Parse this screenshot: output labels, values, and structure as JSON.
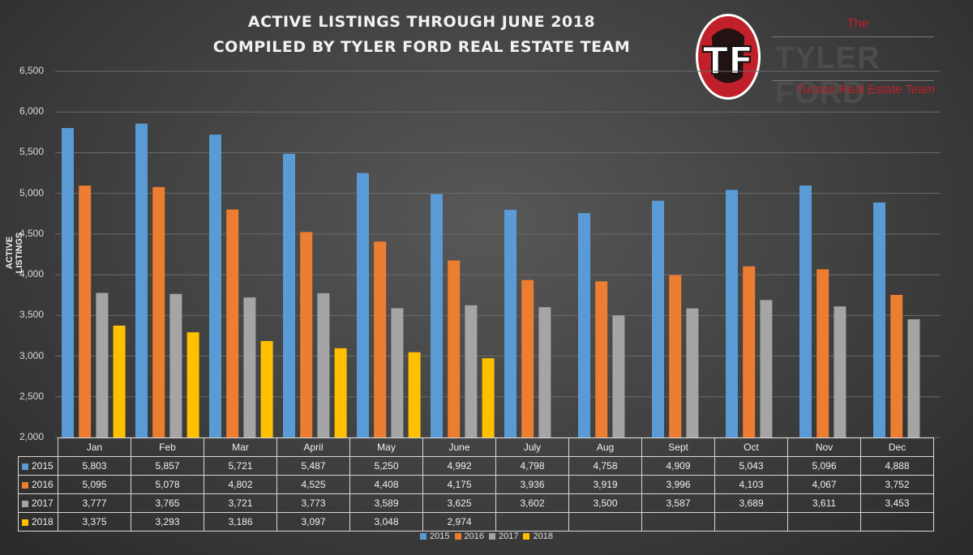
{
  "title_line1": "ACTIVE LISTINGS THROUGH JUNE 2018",
  "title_line2": "COMPILED BY TYLER FORD REAL ESTATE TEAM",
  "logo": {
    "monogram": "TF",
    "the": "The",
    "name": "TYLER FORD",
    "subtitle": "Tucson Real Estate Team",
    "brand_red": "#c0202a"
  },
  "colors": {
    "2015": "#5b9bd5",
    "2016": "#ed7d31",
    "2017": "#a5a5a5",
    "2018": "#ffc000"
  },
  "chart_data": {
    "type": "bar",
    "title": "ACTIVE LISTINGS THROUGH JUNE 2018",
    "subtitle": "COMPILED BY TYLER FORD REAL ESTATE TEAM",
    "xlabel": "",
    "ylabel": "ACTIVE LISTINGS",
    "ylim": [
      2000,
      6500
    ],
    "yticks": [
      "6,500",
      "6,000",
      "5,500",
      "5,000",
      "4,500",
      "4,000",
      "3,500",
      "3,000",
      "2,500",
      "2,000"
    ],
    "ytick_values": [
      6500,
      6000,
      5500,
      5000,
      4500,
      4000,
      3500,
      3000,
      2500,
      2000
    ],
    "grid": true,
    "legend": "bottom",
    "categories": [
      "Jan",
      "Feb",
      "Mar",
      "April",
      "May",
      "June",
      "July",
      "Aug",
      "Sept",
      "Oct",
      "Nov",
      "Dec"
    ],
    "series": [
      {
        "name": "2015",
        "values": [
          5803,
          5857,
          5721,
          5487,
          5250,
          4992,
          4798,
          4758,
          4909,
          5043,
          5096,
          4888
        ],
        "labels": [
          "5,803",
          "5,857",
          "5,721",
          "5,487",
          "5,250",
          "4,992",
          "4,798",
          "4,758",
          "4,909",
          "5,043",
          "5,096",
          "4,888"
        ]
      },
      {
        "name": "2016",
        "values": [
          5095,
          5078,
          4802,
          4525,
          4408,
          4175,
          3936,
          3919,
          3996,
          4103,
          4067,
          3752
        ],
        "labels": [
          "5,095",
          "5,078",
          "4,802",
          "4,525",
          "4,408",
          "4,175",
          "3,936",
          "3,919",
          "3,996",
          "4,103",
          "4,067",
          "3,752"
        ]
      },
      {
        "name": "2017",
        "values": [
          3777,
          3765,
          3721,
          3773,
          3589,
          3625,
          3602,
          3500,
          3587,
          3689,
          3611,
          3453
        ],
        "labels": [
          "3,777",
          "3,765",
          "3,721",
          "3,773",
          "3,589",
          "3,625",
          "3,602",
          "3,500",
          "3,587",
          "3,689",
          "3,611",
          "3,453"
        ]
      },
      {
        "name": "2018",
        "values": [
          3375,
          3293,
          3186,
          3097,
          3048,
          2974,
          null,
          null,
          null,
          null,
          null,
          null
        ],
        "labels": [
          "3,375",
          "3,293",
          "3,186",
          "3,097",
          "3,048",
          "2,974",
          "",
          "",
          "",
          "",
          "",
          ""
        ]
      }
    ]
  }
}
